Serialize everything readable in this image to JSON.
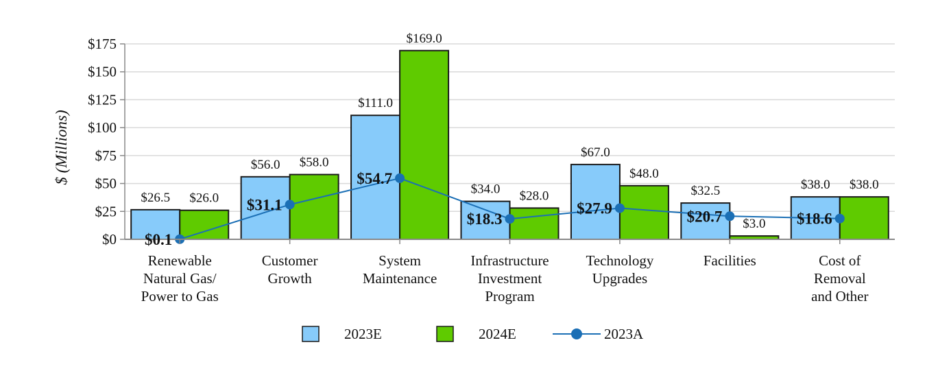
{
  "chart_data": {
    "type": "bar",
    "ylabel": "$ (Millions)",
    "ylim": [
      0,
      175
    ],
    "yticks": [
      0,
      25,
      50,
      75,
      100,
      125,
      150,
      175
    ],
    "ytick_labels": [
      "$0",
      "$25",
      "$50",
      "$75",
      "$100",
      "$125",
      "$150",
      "$175"
    ],
    "grid": true,
    "legend_position": "bottom",
    "categories": [
      [
        "Renewable",
        "Natural Gas/",
        "Power to Gas"
      ],
      [
        "Customer",
        "Growth"
      ],
      [
        "System",
        "Maintenance"
      ],
      [
        "Infrastructure",
        "Investment",
        "Program"
      ],
      [
        "Technology",
        "Upgrades"
      ],
      [
        "Facilities"
      ],
      [
        "Cost of",
        "Removal",
        "and Other"
      ]
    ],
    "series": [
      {
        "name": "2023E",
        "type": "bar",
        "color": "#87CBFA",
        "values": [
          26.5,
          56.0,
          111.0,
          34.0,
          67.0,
          32.5,
          38.0
        ],
        "labels": [
          "$26.5",
          "$56.0",
          "$111.0",
          "$34.0",
          "$67.0",
          "$32.5",
          "$38.0"
        ]
      },
      {
        "name": "2024E",
        "type": "bar",
        "color": "#5FCB00",
        "values": [
          26.0,
          58.0,
          169.0,
          28.0,
          48.0,
          3.0,
          38.0
        ],
        "labels": [
          "$26.0",
          "$58.0",
          "$169.0",
          "$28.0",
          "$48.0",
          "$3.0",
          "$38.0"
        ]
      },
      {
        "name": "2023A",
        "type": "line",
        "color": "#1B6FB5",
        "values": [
          0.1,
          31.1,
          54.7,
          18.3,
          27.9,
          20.7,
          18.6
        ],
        "labels": [
          "$0.1",
          "$31.1",
          "$54.7",
          "$18.3",
          "$27.9",
          "$20.7",
          "$18.6"
        ]
      }
    ]
  }
}
